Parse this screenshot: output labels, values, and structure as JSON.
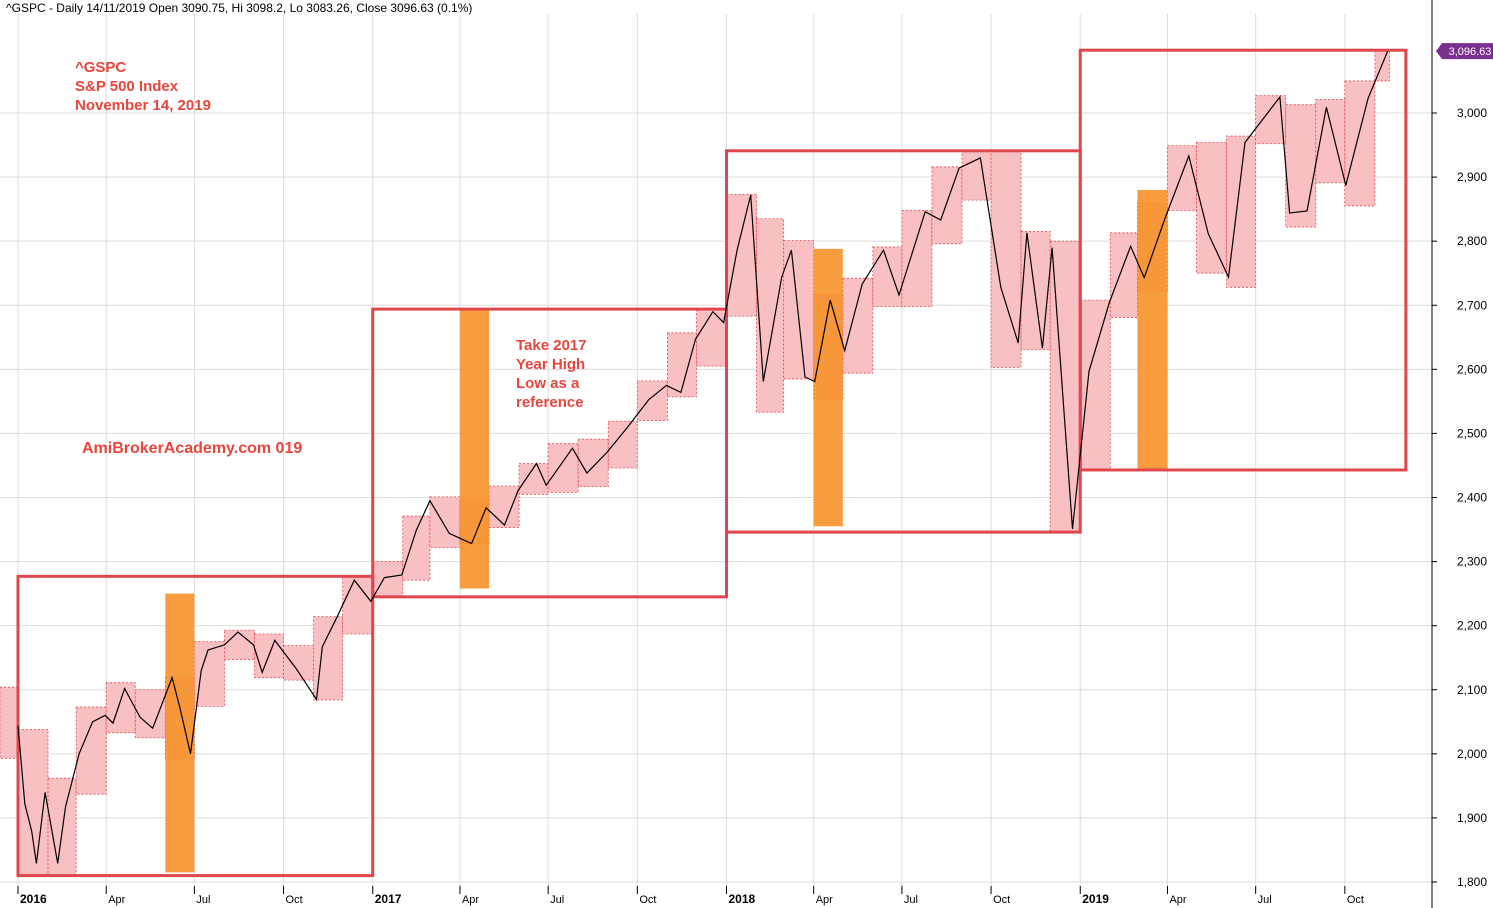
{
  "header": {
    "text": "^GSPC - Daily 14/11/2019 Open 3090.75, Hi 3098.2, Lo 3083.26, Close 3096.63 (0.1%)"
  },
  "annotations": {
    "title_lines": [
      "^GSPC",
      "S&P 500 Index",
      "November 14, 2019"
    ],
    "site": "AmiBrokerAcademy.com   019",
    "note_lines": [
      "Take 2017",
      "Year High",
      "Low as a",
      "reference"
    ]
  },
  "colors": {
    "price": "#000000",
    "month_box_fill": "#f9c0c4",
    "month_box_stroke": "#e0474c",
    "year_box_stroke": "#e0474c",
    "highlight": "#f7922a",
    "annotation_text": "#e8453c",
    "grid": "#dcdcdc",
    "last_price_tag": "#7b2f8e"
  },
  "chart_data": {
    "type": "line",
    "symbol": "^GSPC",
    "ylim": [
      1780,
      3140
    ],
    "y_ticks": [
      1800,
      1900,
      2000,
      2100,
      2200,
      2300,
      2400,
      2500,
      2600,
      2700,
      2800,
      2900,
      3000
    ],
    "y_tick_labels": [
      "1,800",
      "1,900",
      "2,000",
      "2,100",
      "2,200",
      "2,300",
      "2,400",
      "2,500",
      "2,600",
      "2,700",
      "2,800",
      "2,900",
      "3,000"
    ],
    "x_tick_labels": [
      {
        "date": "2016-01",
        "label": "2016",
        "year": true
      },
      {
        "date": "2016-04",
        "label": "Apr"
      },
      {
        "date": "2016-07",
        "label": "Jul"
      },
      {
        "date": "2016-10",
        "label": "Oct"
      },
      {
        "date": "2017-01",
        "label": "2017",
        "year": true
      },
      {
        "date": "2017-04",
        "label": "Apr"
      },
      {
        "date": "2017-07",
        "label": "Jul"
      },
      {
        "date": "2017-10",
        "label": "Oct"
      },
      {
        "date": "2018-01",
        "label": "2018",
        "year": true
      },
      {
        "date": "2018-04",
        "label": "Apr"
      },
      {
        "date": "2018-07",
        "label": "Jul"
      },
      {
        "date": "2018-10",
        "label": "Oct"
      },
      {
        "date": "2019-01",
        "label": "2019",
        "year": true
      },
      {
        "date": "2019-04",
        "label": "Apr"
      },
      {
        "date": "2019-07",
        "label": "Jul"
      },
      {
        "date": "2019-10",
        "label": "Oct"
      }
    ],
    "last_price": {
      "value": 3096.63,
      "label": "3,096.63"
    },
    "monthly_ranges": [
      {
        "month": "2015-12",
        "high": 2104,
        "low": 1993
      },
      {
        "month": "2016-01",
        "high": 2038,
        "low": 1812
      },
      {
        "month": "2016-02",
        "high": 1962,
        "low": 1810
      },
      {
        "month": "2016-03",
        "high": 2073,
        "low": 1937
      },
      {
        "month": "2016-04",
        "high": 2111,
        "low": 2033
      },
      {
        "month": "2016-05",
        "high": 2100,
        "low": 2025
      },
      {
        "month": "2016-06",
        "high": 2120,
        "low": 1992
      },
      {
        "month": "2016-07",
        "high": 2175,
        "low": 2074
      },
      {
        "month": "2016-08",
        "high": 2193,
        "low": 2147
      },
      {
        "month": "2016-09",
        "high": 2187,
        "low": 2119
      },
      {
        "month": "2016-10",
        "high": 2169,
        "low": 2115
      },
      {
        "month": "2016-11",
        "high": 2214,
        "low": 2084
      },
      {
        "month": "2016-12",
        "high": 2277,
        "low": 2187
      },
      {
        "month": "2017-01",
        "high": 2300,
        "low": 2245
      },
      {
        "month": "2017-02",
        "high": 2371,
        "low": 2271
      },
      {
        "month": "2017-03",
        "high": 2401,
        "low": 2322
      },
      {
        "month": "2017-04",
        "high": 2398,
        "low": 2328
      },
      {
        "month": "2017-05",
        "high": 2418,
        "low": 2353
      },
      {
        "month": "2017-06",
        "high": 2453,
        "low": 2405
      },
      {
        "month": "2017-07",
        "high": 2484,
        "low": 2408
      },
      {
        "month": "2017-08",
        "high": 2491,
        "low": 2417
      },
      {
        "month": "2017-09",
        "high": 2519,
        "low": 2446
      },
      {
        "month": "2017-10",
        "high": 2582,
        "low": 2520
      },
      {
        "month": "2017-11",
        "high": 2657,
        "low": 2557
      },
      {
        "month": "2017-12",
        "high": 2694,
        "low": 2605
      },
      {
        "month": "2018-01",
        "high": 2873,
        "low": 2683
      },
      {
        "month": "2018-02",
        "high": 2835,
        "low": 2533
      },
      {
        "month": "2018-03",
        "high": 2801,
        "low": 2585
      },
      {
        "month": "2018-04",
        "high": 2717,
        "low": 2553
      },
      {
        "month": "2018-05",
        "high": 2742,
        "low": 2594
      },
      {
        "month": "2018-06",
        "high": 2791,
        "low": 2698
      },
      {
        "month": "2018-07",
        "high": 2848,
        "low": 2698
      },
      {
        "month": "2018-08",
        "high": 2916,
        "low": 2796
      },
      {
        "month": "2018-09",
        "high": 2941,
        "low": 2864
      },
      {
        "month": "2018-10",
        "high": 2940,
        "low": 2603
      },
      {
        "month": "2018-11",
        "high": 2815,
        "low": 2631
      },
      {
        "month": "2018-12",
        "high": 2800,
        "low": 2346
      },
      {
        "month": "2019-01",
        "high": 2708,
        "low": 2443
      },
      {
        "month": "2019-02",
        "high": 2813,
        "low": 2681
      },
      {
        "month": "2019-03",
        "high": 2860,
        "low": 2722
      },
      {
        "month": "2019-04",
        "high": 2949,
        "low": 2848
      },
      {
        "month": "2019-05",
        "high": 2954,
        "low": 2750
      },
      {
        "month": "2019-06",
        "high": 2964,
        "low": 2728
      },
      {
        "month": "2019-07",
        "high": 3027,
        "low": 2952
      },
      {
        "month": "2019-08",
        "high": 3013,
        "low": 2822
      },
      {
        "month": "2019-09",
        "high": 3021,
        "low": 2891
      },
      {
        "month": "2019-10",
        "high": 3050,
        "low": 2855
      },
      {
        "month": "2019-11",
        "high": 3098,
        "low": 3050
      }
    ],
    "yearly_ranges": [
      {
        "year": 2016,
        "high": 2277,
        "low": 1810
      },
      {
        "year": 2017,
        "high": 2694,
        "low": 2245
      },
      {
        "year": 2018,
        "high": 2941,
        "low": 2346
      },
      {
        "year": 2019,
        "high": 3098,
        "low": 2443
      }
    ],
    "highlights": [
      {
        "month": "2016-06",
        "top": 2250,
        "bottom": 1815
      },
      {
        "month": "2017-04",
        "top": 2695,
        "bottom": 2258
      },
      {
        "month": "2018-04",
        "top": 2788,
        "bottom": 2355
      },
      {
        "month": "2019-03",
        "top": 2880,
        "bottom": 2445
      }
    ],
    "price_path": [
      [
        "2016-01-01",
        2044
      ],
      [
        "2016-01-08",
        1922
      ],
      [
        "2016-01-15",
        1880
      ],
      [
        "2016-01-20",
        1829
      ],
      [
        "2016-01-29",
        1940
      ],
      [
        "2016-02-05",
        1880
      ],
      [
        "2016-02-11",
        1829
      ],
      [
        "2016-02-19",
        1917
      ],
      [
        "2016-03-04",
        2000
      ],
      [
        "2016-03-18",
        2050
      ],
      [
        "2016-03-31",
        2060
      ],
      [
        "2016-04-08",
        2048
      ],
      [
        "2016-04-20",
        2102
      ],
      [
        "2016-05-06",
        2057
      ],
      [
        "2016-05-19",
        2040
      ],
      [
        "2016-06-08",
        2119
      ],
      [
        "2016-06-16",
        2072
      ],
      [
        "2016-06-27",
        2000
      ],
      [
        "2016-07-08",
        2130
      ],
      [
        "2016-07-15",
        2162
      ],
      [
        "2016-08-01",
        2170
      ],
      [
        "2016-08-15",
        2190
      ],
      [
        "2016-08-31",
        2170
      ],
      [
        "2016-09-09",
        2127
      ],
      [
        "2016-09-22",
        2177
      ],
      [
        "2016-10-14",
        2133
      ],
      [
        "2016-11-04",
        2085
      ],
      [
        "2016-11-10",
        2167
      ],
      [
        "2016-11-25",
        2213
      ],
      [
        "2016-12-13",
        2271
      ],
      [
        "2016-12-30",
        2238
      ],
      [
        "2017-01-13",
        2275
      ],
      [
        "2017-01-31",
        2279
      ],
      [
        "2017-02-15",
        2349
      ],
      [
        "2017-03-01",
        2395
      ],
      [
        "2017-03-21",
        2344
      ],
      [
        "2017-04-13",
        2328
      ],
      [
        "2017-04-28",
        2384
      ],
      [
        "2017-05-17",
        2357
      ],
      [
        "2017-05-31",
        2411
      ],
      [
        "2017-06-19",
        2453
      ],
      [
        "2017-06-29",
        2419
      ],
      [
        "2017-07-26",
        2477
      ],
      [
        "2017-08-10",
        2438
      ],
      [
        "2017-08-31",
        2471
      ],
      [
        "2017-09-20",
        2508
      ],
      [
        "2017-10-13",
        2553
      ],
      [
        "2017-10-31",
        2575
      ],
      [
        "2017-11-15",
        2564
      ],
      [
        "2017-11-30",
        2647
      ],
      [
        "2017-12-18",
        2690
      ],
      [
        "2017-12-29",
        2673
      ],
      [
        "2018-01-12",
        2786
      ],
      [
        "2018-01-26",
        2872
      ],
      [
        "2018-02-08",
        2581
      ],
      [
        "2018-02-27",
        2744
      ],
      [
        "2018-03-09",
        2786
      ],
      [
        "2018-03-23",
        2588
      ],
      [
        "2018-04-02",
        2581
      ],
      [
        "2018-04-18",
        2708
      ],
      [
        "2018-05-03",
        2629
      ],
      [
        "2018-05-21",
        2733
      ],
      [
        "2018-06-12",
        2786
      ],
      [
        "2018-06-28",
        2716
      ],
      [
        "2018-07-25",
        2846
      ],
      [
        "2018-08-10",
        2833
      ],
      [
        "2018-08-29",
        2914
      ],
      [
        "2018-09-20",
        2930
      ],
      [
        "2018-10-11",
        2728
      ],
      [
        "2018-10-29",
        2641
      ],
      [
        "2018-11-07",
        2813
      ],
      [
        "2018-11-23",
        2633
      ],
      [
        "2018-12-03",
        2790
      ],
      [
        "2018-12-24",
        2351
      ],
      [
        "2019-01-10",
        2597
      ],
      [
        "2019-01-31",
        2704
      ],
      [
        "2019-02-22",
        2792
      ],
      [
        "2019-03-08",
        2743
      ],
      [
        "2019-03-29",
        2834
      ],
      [
        "2019-04-23",
        2933
      ],
      [
        "2019-05-13",
        2812
      ],
      [
        "2019-06-03",
        2744
      ],
      [
        "2019-06-20",
        2954
      ],
      [
        "2019-07-26",
        3025
      ],
      [
        "2019-08-05",
        2844
      ],
      [
        "2019-08-23",
        2847
      ],
      [
        "2019-09-12",
        3009
      ],
      [
        "2019-10-02",
        2887
      ],
      [
        "2019-10-25",
        3023
      ],
      [
        "2019-11-14",
        3096
      ]
    ]
  }
}
